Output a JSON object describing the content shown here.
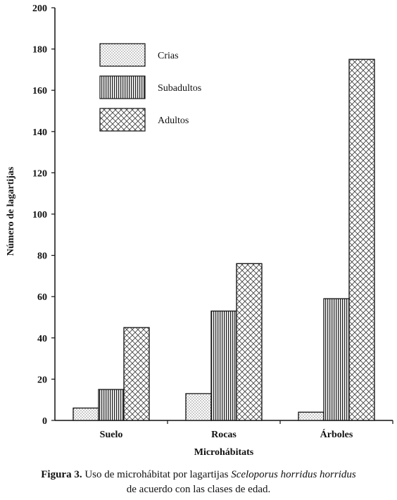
{
  "chart_data": {
    "type": "bar",
    "xlabel": "Microhábitats",
    "ylabel": "Número de lagartijas",
    "ylim": [
      0,
      200
    ],
    "yticks": [
      0,
      20,
      40,
      60,
      80,
      100,
      120,
      140,
      160,
      180,
      200
    ],
    "categories": [
      "Suelo",
      "Rocas",
      "Árboles"
    ],
    "series": [
      {
        "name": "Crias",
        "values": [
          6,
          13,
          4
        ],
        "pattern": "dots"
      },
      {
        "name": "Subadultos",
        "values": [
          15,
          53,
          59
        ],
        "pattern": "vertical-lines"
      },
      {
        "name": "Adultos",
        "values": [
          45,
          76,
          175
        ],
        "pattern": "crosshatch"
      }
    ],
    "legend_position": "top-left",
    "grid": false
  },
  "caption": {
    "label": "Figura 3.",
    "text_before": " Uso de microhábitat por lagartijas ",
    "species": "Sceloporus horridus horridus",
    "text_after": "de acuerdo con las clases de edad."
  }
}
